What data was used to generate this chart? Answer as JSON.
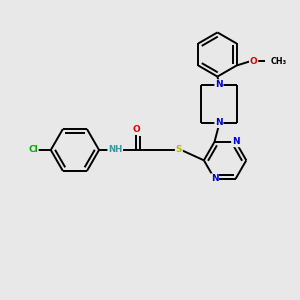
{
  "bg": "#e8e8e8",
  "bond_color": "#000000",
  "colors": {
    "N": "#0000dd",
    "O": "#dd0000",
    "S": "#bbbb00",
    "Cl": "#00aa00",
    "H": "#339999",
    "C": "#000000"
  },
  "lw": 1.4,
  "figsize": [
    3.0,
    3.0
  ],
  "dpi": 100
}
